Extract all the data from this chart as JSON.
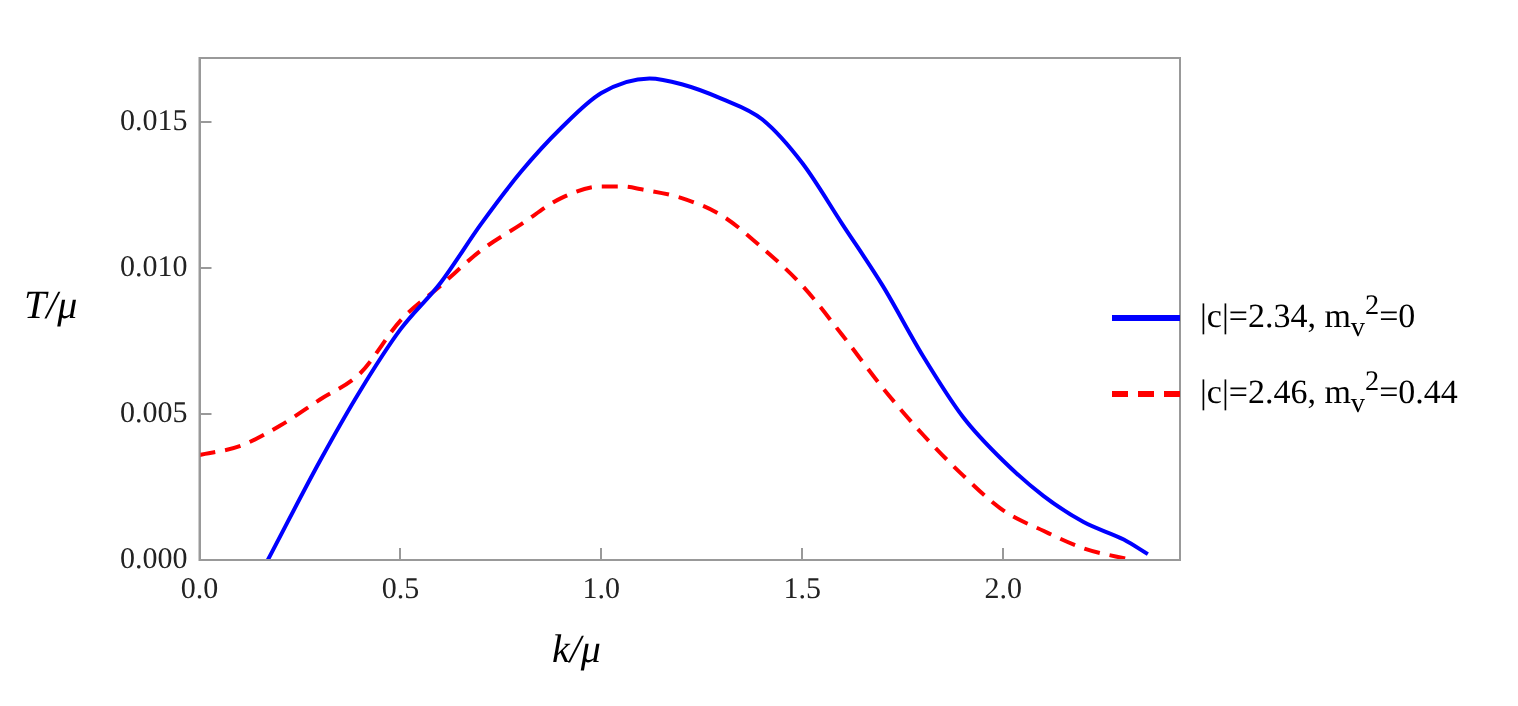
{
  "chart_data": {
    "type": "line",
    "xlabel": "k/μ",
    "ylabel": "T/μ",
    "xlim": [
      0,
      2.44
    ],
    "ylim": [
      0,
      0.0172
    ],
    "xticks": [
      {
        "value": 0,
        "label": "0.0"
      },
      {
        "value": 0.5,
        "label": "0.5"
      },
      {
        "value": 1,
        "label": "1.0"
      },
      {
        "value": 1.5,
        "label": "1.5"
      },
      {
        "value": 2,
        "label": "2.0"
      }
    ],
    "yticks": [
      {
        "value": 0,
        "label": "0.000"
      },
      {
        "value": 0.005,
        "label": "0.005"
      },
      {
        "value": 0.01,
        "label": "0.010"
      },
      {
        "value": 0.015,
        "label": "0.015"
      }
    ],
    "grid": false,
    "legend": "right",
    "marker": "none",
    "series": [
      {
        "name": "|c|=2.34, m$_{v}$$^{2}$=0",
        "color": "#0000ff",
        "line_style": "solid",
        "x": [
          0.17,
          0.3,
          0.4,
          0.5,
          0.6,
          0.7,
          0.8,
          0.9,
          1.0,
          1.12,
          1.2,
          1.3,
          1.4,
          1.5,
          1.6,
          1.7,
          1.8,
          1.9,
          2.0,
          2.1,
          2.2,
          2.3,
          2.36
        ],
        "values": [
          0,
          0.0034,
          0.0058,
          0.0079,
          0.0095,
          0.0115,
          0.0133,
          0.0148,
          0.016,
          0.0165,
          0.0163,
          0.0158,
          0.0151,
          0.0136,
          0.0115,
          0.0094,
          0.007,
          0.0049,
          0.0034,
          0.0022,
          0.0013,
          0.0007,
          0.0002
        ]
      },
      {
        "name": "|c|=2.46, m$_{v}$$^{2}$=0.44",
        "color": "#ff0000",
        "line_style": "dashed",
        "x": [
          0,
          0.1,
          0.2,
          0.3,
          0.4,
          0.5,
          0.6,
          0.7,
          0.8,
          0.9,
          1.0,
          1.05,
          1.1,
          1.2,
          1.3,
          1.4,
          1.5,
          1.6,
          1.7,
          1.8,
          1.9,
          2.0,
          2.1,
          2.2,
          2.32
        ],
        "values": [
          0.0036,
          0.0039,
          0.0046,
          0.0055,
          0.0064,
          0.0082,
          0.0094,
          0.0106,
          0.0115,
          0.0124,
          0.0128,
          0.0128,
          0.0127,
          0.0124,
          0.0118,
          0.0107,
          0.0094,
          0.0077,
          0.0059,
          0.0043,
          0.0029,
          0.0017,
          0.001,
          0.0004,
          0
        ]
      }
    ]
  }
}
